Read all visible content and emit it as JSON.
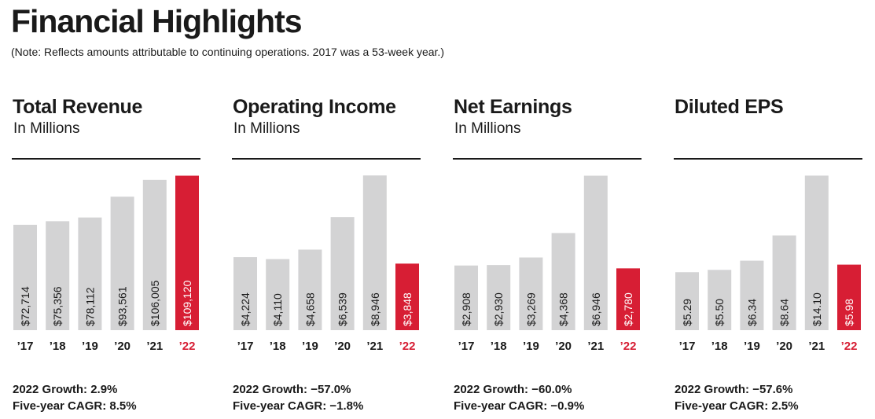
{
  "title": "Financial Highlights",
  "note": "(Note: Reflects amounts attributable to continuing operations. 2017 was a 53-week year.)",
  "colors": {
    "bar": "#d3d3d4",
    "highlight": "#d71e34",
    "text": "#1a1a1a"
  },
  "chart_data": [
    {
      "type": "bar",
      "title": "Total Revenue",
      "subtitle": "In Millions",
      "categories": [
        "’17",
        "’18",
        "’19",
        "’20",
        "’21",
        "’22"
      ],
      "values": [
        72714,
        75356,
        78112,
        93561,
        106005,
        109120
      ],
      "value_labels": [
        "$72,714",
        "$75,356",
        "$78,112",
        "$93,561",
        "$106,005",
        "$109,120"
      ],
      "highlight_index": 5,
      "ylim": [
        40000,
        110000
      ],
      "growth": "2022 Growth: 2.9%",
      "cagr": "Five-year CAGR: 8.5%"
    },
    {
      "type": "bar",
      "title": "Operating Income",
      "subtitle": "In Millions",
      "categories": [
        "’17",
        "’18",
        "’19",
        "’20",
        "’21",
        "’22"
      ],
      "values": [
        4224,
        4110,
        4658,
        6539,
        8946,
        3848
      ],
      "value_labels": [
        "$4,224",
        "$4,110",
        "$4,658",
        "$6,539",
        "$8,946",
        "$3,848"
      ],
      "highlight_index": 5,
      "ylim": [
        0,
        9000
      ],
      "growth": "2022 Growth: −57.0%",
      "cagr": "Five-year CAGR: −1.8%"
    },
    {
      "type": "bar",
      "title": "Net Earnings",
      "subtitle": "In Millions",
      "categories": [
        "’17",
        "’18",
        "’19",
        "’20",
        "’21",
        "’22"
      ],
      "values": [
        2908,
        2930,
        3269,
        4368,
        6946,
        2780
      ],
      "value_labels": [
        "$2,908",
        "$2,930",
        "$3,269",
        "$4,368",
        "$6,946",
        "$2,780"
      ],
      "highlight_index": 5,
      "ylim": [
        0,
        7000
      ],
      "growth": "2022 Growth: −60.0%",
      "cagr": "Five-year CAGR: −0.9%"
    },
    {
      "type": "bar",
      "title": "Diluted EPS",
      "subtitle": "",
      "categories": [
        "’17",
        "’18",
        "’19",
        "’20",
        "’21",
        "’22"
      ],
      "values": [
        5.29,
        5.5,
        6.34,
        8.64,
        14.1,
        5.98
      ],
      "value_labels": [
        "$5.29",
        "$5.50",
        "$6.34",
        "$8.64",
        "$14.10",
        "$5.98"
      ],
      "highlight_index": 5,
      "ylim": [
        0,
        14.2
      ],
      "growth": "2022 Growth: −57.6%",
      "cagr": "Five-year CAGR: 2.5%"
    }
  ]
}
